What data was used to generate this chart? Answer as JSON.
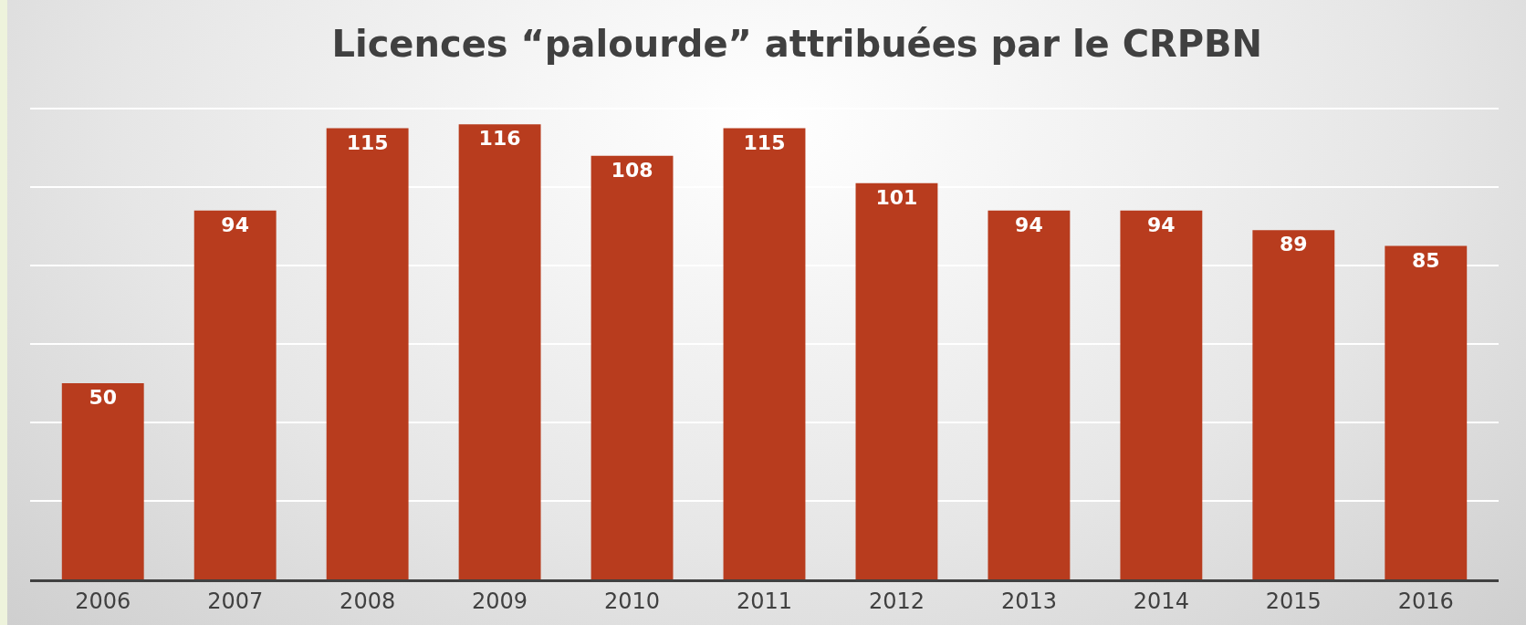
{
  "chart_data": {
    "type": "bar",
    "title": "Licences “palourde” attribuées par le CRPBN",
    "categories": [
      "2006",
      "2007",
      "2008",
      "2009",
      "2010",
      "2011",
      "2012",
      "2013",
      "2014",
      "2015",
      "2016"
    ],
    "values": [
      50,
      94,
      115,
      116,
      108,
      115,
      101,
      94,
      94,
      89,
      85
    ],
    "color": "#b83c1e",
    "grid": "y",
    "tick_labels": "x",
    "data_labels": true
  }
}
